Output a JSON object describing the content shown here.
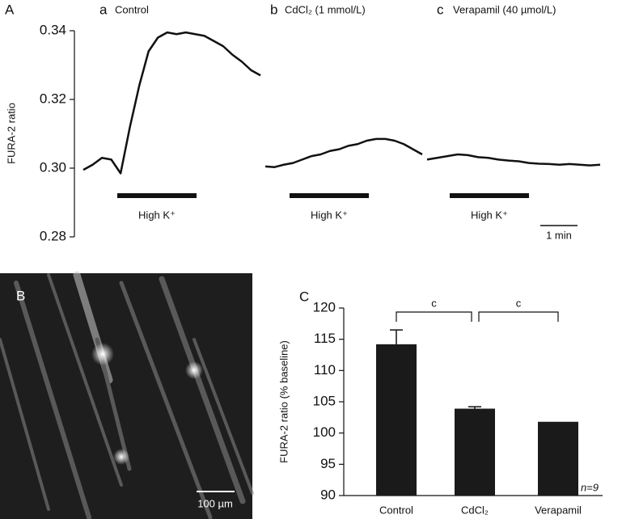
{
  "chart_data": [
    {
      "type": "line",
      "label": "A",
      "ylabel": "FURA-2 ratio",
      "ylim": [
        0.28,
        0.34
      ],
      "yticks": [
        0.28,
        {
          "value": 0.3,
          "label": "0.30"
        },
        0.32,
        0.34
      ],
      "series": [
        {
          "letter": "a",
          "name": "Control",
          "color": "#111111",
          "values": [
            0.2995,
            0.301,
            0.303,
            0.3025,
            0.2985,
            0.312,
            0.324,
            0.334,
            0.338,
            0.3395,
            0.339,
            0.3395,
            0.339,
            0.3385,
            0.337,
            0.3355,
            0.333,
            0.331,
            0.3285,
            0.327
          ]
        },
        {
          "letter": "b",
          "name": "CdCl₂ (1 mmol/L)",
          "color": "#111111",
          "values": [
            0.3005,
            0.3003,
            0.301,
            0.3015,
            0.3025,
            0.3035,
            0.304,
            0.305,
            0.3055,
            0.3065,
            0.307,
            0.308,
            0.3085,
            0.3085,
            0.308,
            0.307,
            0.3055,
            0.304
          ]
        },
        {
          "letter": "c",
          "name": "Verapamil (40 µmol/L)",
          "color": "#111111",
          "values": [
            0.3025,
            0.303,
            0.3035,
            0.304,
            0.3038,
            0.3032,
            0.303,
            0.3025,
            0.3022,
            0.302,
            0.3015,
            0.3013,
            0.3012,
            0.301,
            0.3012,
            0.301,
            0.3008,
            0.301
          ]
        }
      ],
      "annotations": [
        "High K⁺",
        "High K⁺",
        "High K⁺"
      ],
      "scale_bar": "1 min"
    },
    {
      "type": "bar",
      "label": "C",
      "ylabel": "FURA-2 ratio (% baseline)",
      "categories": [
        "Control",
        "CdCl₂",
        "Verapamil"
      ],
      "values": [
        114.2,
        103.9,
        101.8
      ],
      "errors": [
        2.3,
        0.3,
        null
      ],
      "color": "#1a1a1a",
      "ylim": [
        90,
        120
      ],
      "yticks": [
        90,
        95,
        100,
        105,
        110,
        115,
        120
      ],
      "significance": [
        "c",
        "c"
      ],
      "n_label": "n=9"
    }
  ],
  "image": {
    "label": "B",
    "scale_bar": "100 µm"
  }
}
